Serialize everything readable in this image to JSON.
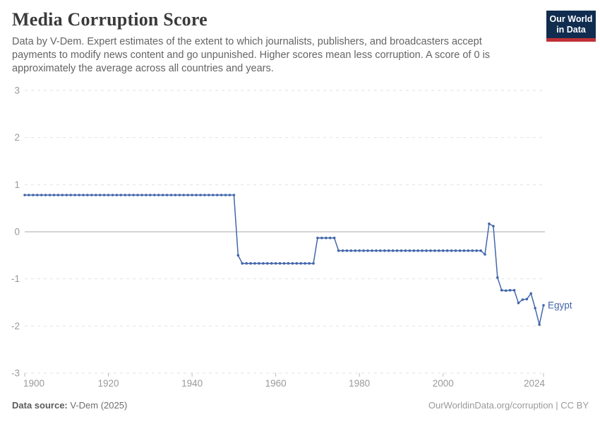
{
  "header": {
    "title": "Media Corruption Score",
    "subtitle": "Data by V-Dem. Expert estimates of the extent to which journalists, publishers, and broadcasters accept payments to modify news content and go unpunished. Higher scores mean less corruption. A score of 0 is approximately the average across all countries and years.",
    "logo": {
      "line1": "Our World",
      "line2": "in Data",
      "bg_color": "#102d50",
      "accent_color": "#bf3036"
    }
  },
  "footer": {
    "source_label": "Data source:",
    "source_value": " V-Dem (2025)",
    "origin_text": "OurWorldinData.org/corruption | CC BY"
  },
  "colors": {
    "series_blue": "#4266ab",
    "gridline": "#e2e2e2",
    "zero_line": "#a8a8a8",
    "axis_label": "#999999",
    "tick_mark": "#bbbbbb"
  },
  "chart_data": {
    "type": "line",
    "title": "Media Corruption Score",
    "xlabel": "",
    "ylabel": "",
    "xlim": [
      1900,
      2024
    ],
    "ylim": [
      -3,
      3
    ],
    "x_ticks": [
      1900,
      1920,
      1940,
      1960,
      1980,
      2000,
      2024
    ],
    "y_ticks": [
      3,
      2,
      1,
      0,
      -1,
      -2,
      -3
    ],
    "grid": "horizontal dashed gridlines, solid zero line, no vertical gridlines",
    "legend_position": "end-of-line label",
    "markers": "small dot at every yearly data point",
    "series": [
      {
        "name": "Egypt",
        "color": "#4266ab",
        "start_year": 1900,
        "end_year": 2024,
        "values": [
          0.78,
          0.78,
          0.78,
          0.78,
          0.78,
          0.78,
          0.78,
          0.78,
          0.78,
          0.78,
          0.78,
          0.78,
          0.78,
          0.78,
          0.78,
          0.78,
          0.78,
          0.78,
          0.78,
          0.78,
          0.78,
          0.78,
          0.78,
          0.78,
          0.78,
          0.78,
          0.78,
          0.78,
          0.78,
          0.78,
          0.78,
          0.78,
          0.78,
          0.78,
          0.78,
          0.78,
          0.78,
          0.78,
          0.78,
          0.78,
          0.78,
          0.78,
          0.78,
          0.78,
          0.78,
          0.78,
          0.78,
          0.78,
          0.78,
          0.78,
          0.78,
          -0.5,
          -0.67,
          -0.67,
          -0.67,
          -0.67,
          -0.67,
          -0.67,
          -0.67,
          -0.67,
          -0.67,
          -0.67,
          -0.67,
          -0.67,
          -0.67,
          -0.67,
          -0.67,
          -0.67,
          -0.67,
          -0.67,
          -0.13,
          -0.13,
          -0.13,
          -0.13,
          -0.13,
          -0.4,
          -0.4,
          -0.4,
          -0.4,
          -0.4,
          -0.4,
          -0.4,
          -0.4,
          -0.4,
          -0.4,
          -0.4,
          -0.4,
          -0.4,
          -0.4,
          -0.4,
          -0.4,
          -0.4,
          -0.4,
          -0.4,
          -0.4,
          -0.4,
          -0.4,
          -0.4,
          -0.4,
          -0.4,
          -0.4,
          -0.4,
          -0.4,
          -0.4,
          -0.4,
          -0.4,
          -0.4,
          -0.4,
          -0.4,
          -0.4,
          -0.48,
          0.17,
          0.12,
          -0.97,
          -1.24,
          -1.25,
          -1.24,
          -1.24,
          -1.51,
          -1.44,
          -1.43,
          -1.31,
          -1.62,
          -1.97,
          -1.56
        ]
      }
    ]
  }
}
